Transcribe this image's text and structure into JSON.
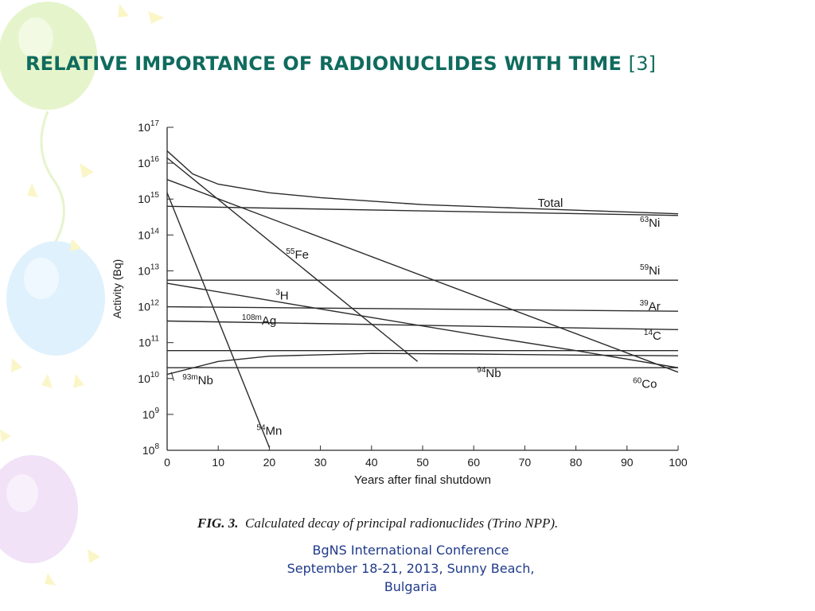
{
  "slide": {
    "title": "RELATIVE IMPORTANCE OF RADIONUCLIDES WITH TIME",
    "title_ref": "[3]",
    "title_color": "#0f6b5e"
  },
  "figure": {
    "caption_fig": "FIG. 3.",
    "caption_text": "Calculated decay of principal radionuclides (Trino NPP)."
  },
  "footer": {
    "line1": "BgNS International Conference",
    "line2": "September 18-21, 2013, Sunny Beach,",
    "line3": "Bulgaria",
    "color": "#1f3a8a"
  },
  "chart_data": {
    "type": "line",
    "xlabel": "Years after final shutdown",
    "ylabel": "Activity (Bq)",
    "xlim": [
      0,
      100
    ],
    "ylim_log10": [
      8,
      17
    ],
    "x_ticks": [
      0,
      10,
      20,
      30,
      40,
      50,
      60,
      70,
      80,
      90,
      100
    ],
    "y_ticks_log10": [
      8,
      9,
      10,
      11,
      12,
      13,
      14,
      15,
      16,
      17
    ],
    "y_scale": "log",
    "grid": false,
    "series": [
      {
        "name": "Total",
        "mass": "",
        "el": "Total",
        "points": [
          [
            0,
            2.2e+16
          ],
          [
            5,
            5000000000000000.0
          ],
          [
            10,
            2600000000000000.0
          ],
          [
            20,
            1500000000000000.0
          ],
          [
            30,
            1100000000000000.0
          ],
          [
            50,
            700000000000000.0
          ],
          [
            70,
            550000000000000.0
          ],
          [
            100,
            390000000000000.0
          ]
        ]
      },
      {
        "name": "63Ni",
        "mass": "63",
        "el": "Ni",
        "points": [
          [
            0,
            630000000000000.0
          ],
          [
            100,
            350000000000000.0
          ]
        ]
      },
      {
        "name": "55Fe",
        "mass": "55",
        "el": "Fe",
        "points": [
          [
            0,
            1.4e+16
          ],
          [
            49,
            30000000000.0
          ]
        ]
      },
      {
        "name": "59Ni",
        "mass": "59",
        "el": "Ni",
        "points": [
          [
            0,
            5500000000000.0
          ],
          [
            100,
            5500000000000.0
          ]
        ]
      },
      {
        "name": "3H",
        "mass": "3",
        "el": "H",
        "points": [
          [
            0,
            4500000000000.0
          ],
          [
            20,
            1500000000000.0
          ],
          [
            40,
            500000000000.0
          ],
          [
            60,
            170000000000.0
          ],
          [
            80,
            60000000000.0
          ],
          [
            100,
            20000000000.0
          ]
        ]
      },
      {
        "name": "39Ar",
        "mass": "39",
        "el": "Ar",
        "points": [
          [
            0,
            1000000000000.0
          ],
          [
            100,
            750000000000.0
          ]
        ]
      },
      {
        "name": "108mAg",
        "mass": "108m",
        "el": "Ag",
        "points": [
          [
            0,
            400000000000.0
          ],
          [
            100,
            230000000000.0
          ]
        ]
      },
      {
        "name": "14C",
        "mass": "14",
        "el": "C",
        "points": [
          [
            0,
            60000000000.0
          ],
          [
            100,
            60000000000.0
          ]
        ]
      },
      {
        "name": "94Nb",
        "mass": "94",
        "el": "Nb",
        "points": [
          [
            0,
            20000000000.0
          ],
          [
            100,
            20000000000.0
          ]
        ]
      },
      {
        "name": "93mNb",
        "mass": "93m",
        "el": "Nb",
        "points": [
          [
            0,
            13000000000.0
          ],
          [
            10,
            30000000000.0
          ],
          [
            20,
            42000000000.0
          ],
          [
            40,
            50000000000.0
          ],
          [
            60,
            48000000000.0
          ],
          [
            80,
            45000000000.0
          ],
          [
            100,
            43000000000.0
          ]
        ]
      },
      {
        "name": "60Co",
        "mass": "60",
        "el": "Co",
        "points": [
          [
            0,
            3500000000000000.0
          ],
          [
            100,
            15000000000.0
          ]
        ]
      },
      {
        "name": "54Mn",
        "mass": "54",
        "el": "Mn",
        "points": [
          [
            0,
            1500000000000000.0
          ],
          [
            20,
            120000000.0
          ]
        ]
      }
    ],
    "labels": [
      {
        "series": "Total",
        "mass": "",
        "el": "Total",
        "x": 75,
        "y": 600000000000000.0
      },
      {
        "series": "63Ni",
        "mass": "63",
        "el": "Ni",
        "x": 94.5,
        "y": 170000000000000.0
      },
      {
        "series": "55Fe",
        "mass": "55",
        "el": "Fe",
        "x": 25.5,
        "y": 22000000000000.0
      },
      {
        "series": "59Ni",
        "mass": "59",
        "el": "Ni",
        "x": 94.5,
        "y": 8000000000000.0
      },
      {
        "series": "3H",
        "mass": "3",
        "el": "H",
        "x": 22.5,
        "y": 1600000000000.0
      },
      {
        "series": "39Ar",
        "mass": "39",
        "el": "Ar",
        "x": 94.5,
        "y": 800000000000.0
      },
      {
        "series": "108mAg",
        "mass": "108m",
        "el": "Ag",
        "x": 18,
        "y": 320000000000.0
      },
      {
        "series": "14C",
        "mass": "14",
        "el": "C",
        "x": 95,
        "y": 120000000000.0
      },
      {
        "series": "94Nb",
        "mass": "94",
        "el": "Nb",
        "x": 63,
        "y": 11000000000.0
      },
      {
        "series": "93mNb",
        "mass": "93m",
        "el": "Nb",
        "x": 6,
        "y": 7000000000.0
      },
      {
        "series": "60Co",
        "mass": "60",
        "el": "Co",
        "x": 93.5,
        "y": 5500000000.0
      },
      {
        "series": "54Mn",
        "mass": "54",
        "el": "Mn",
        "x": 20,
        "y": 270000000.0
      }
    ],
    "line_color": "#2b2b2b"
  }
}
